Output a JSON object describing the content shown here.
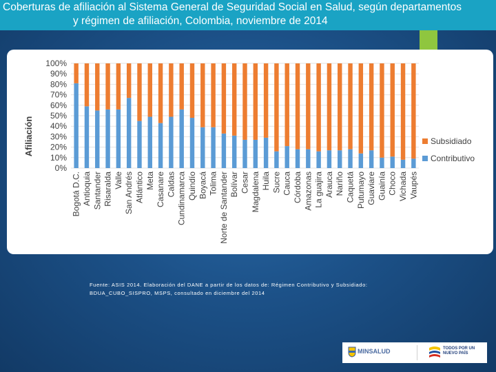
{
  "header": {
    "title_line1": "Coberturas de afiliación al Sistema General de Seguridad Social en Salud, según departamentos",
    "title_line2": "y régimen de afiliación, Colombia, noviembre de 2014"
  },
  "source": {
    "line1": "Fuente: ASIS 2014. Elaboración del DANE a partir de los datos de: Régimen Contributivo y Subsidiado:",
    "line2": "BDUA_CUBO_SISPRO, MSPS, consultado en diciembre del 2014"
  },
  "logos": {
    "minsalud": "MINSALUD",
    "tpnp_line1": "TODOS POR UN",
    "tpnp_line2": "NUEVO PAÍS"
  },
  "colors": {
    "contributivo": "#5b9bd5",
    "subsidiado": "#ed7d31",
    "header": "#1aa3c4",
    "accent": "#8fc63f"
  },
  "chart_data": {
    "type": "bar",
    "stacked": true,
    "title": "",
    "xlabel": "",
    "ylabel": "Afiliación",
    "ylim": [
      0,
      100
    ],
    "yticks": [
      "0%",
      "10%",
      "20%",
      "30%",
      "40%",
      "50%",
      "60%",
      "70%",
      "80%",
      "90%",
      "100%"
    ],
    "legend_position": "right",
    "categories": [
      "Bogotá D.C.",
      "Antioquia",
      "Santander",
      "Risaralda",
      "Valle",
      "San Andrés",
      "Atlántico",
      "Meta",
      "Casanare",
      "Caldas",
      "Cundinamarca",
      "Quindío",
      "Boyacá",
      "Tolima",
      "Norte de Santander",
      "Bolívar",
      "Cesar",
      "Magdalena",
      "Huila",
      "Sucre",
      "Cauca",
      "Córdoba",
      "Amazonas",
      "La guajira",
      "Arauca",
      "Nariño",
      "Caquetá",
      "Putumayo",
      "Guaviare",
      "Guainía",
      "Choco",
      "Vichada",
      "Vaupés"
    ],
    "series": [
      {
        "name": "Contributivo",
        "values": [
          81,
          59,
          55,
          56,
          56,
          67,
          45,
          49,
          43,
          49,
          56,
          48,
          39,
          39,
          33,
          31,
          27,
          27,
          29,
          16,
          21,
          18,
          18,
          16,
          17,
          17,
          18,
          14,
          17,
          10,
          11,
          8,
          9
        ]
      },
      {
        "name": "Subsidiado",
        "values": [
          19,
          41,
          45,
          44,
          44,
          33,
          55,
          51,
          57,
          51,
          44,
          52,
          61,
          61,
          67,
          69,
          73,
          73,
          71,
          84,
          79,
          82,
          82,
          84,
          83,
          83,
          82,
          86,
          83,
          90,
          89,
          92,
          91
        ]
      }
    ]
  }
}
